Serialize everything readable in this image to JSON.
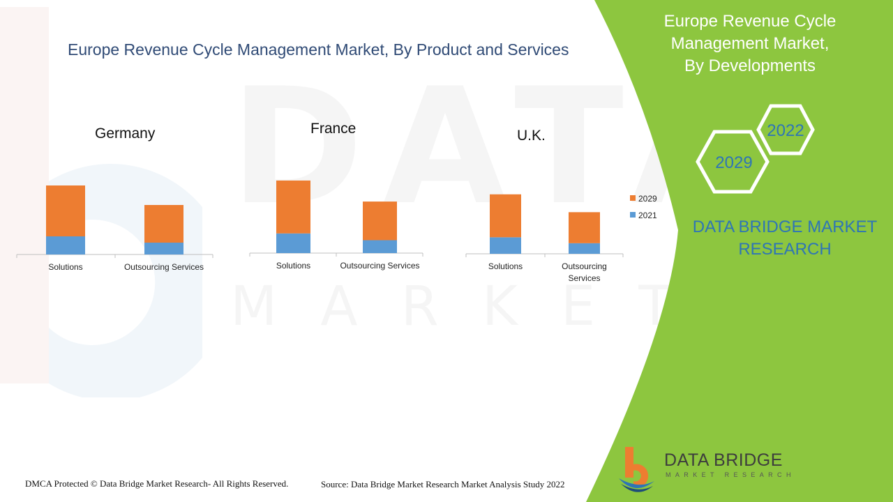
{
  "watermark": {
    "big": "DATA BRIDGE",
    "small": "MARKET RESEARCH"
  },
  "chart_title": "Europe Revenue Cycle Management Market, By Product and Services",
  "colors": {
    "series_2021": "#5b9bd5",
    "series_2029": "#ed7d31",
    "green": "#8dc63f",
    "title_blue": "#2f4a75",
    "brand_blue": "#2e75b6"
  },
  "chart_data": [
    {
      "type": "bar",
      "stacked": true,
      "title": "Germany",
      "categories": [
        "Solutions",
        "Outsourcing Services"
      ],
      "series": [
        {
          "name": "2021",
          "values": [
            26,
            17
          ]
        },
        {
          "name": "2029",
          "values": [
            73,
            54
          ]
        }
      ],
      "ylim": [
        0,
        100
      ]
    },
    {
      "type": "bar",
      "stacked": true,
      "title": "France",
      "categories": [
        "Solutions",
        "Outsourcing Services"
      ],
      "series": [
        {
          "name": "2021",
          "values": [
            29,
            19
          ]
        },
        {
          "name": "2029",
          "values": [
            78,
            57
          ]
        }
      ],
      "ylim": [
        0,
        110
      ]
    },
    {
      "type": "bar",
      "stacked": true,
      "title": "U.K.",
      "categories": [
        "Solutions",
        "Outsourcing Services"
      ],
      "series": [
        {
          "name": "2021",
          "values": [
            25,
            16
          ]
        },
        {
          "name": "2029",
          "values": [
            65,
            47
          ]
        }
      ],
      "ylim": [
        0,
        95
      ],
      "legend": {
        "placement": "right",
        "entries": [
          "2029",
          "2021"
        ]
      }
    }
  ],
  "panel": {
    "title": "Europe Revenue Cycle Management Market, By Developments",
    "hex_2022": "2022",
    "hex_2029": "2029",
    "brand": "DATA BRIDGE MARKET RESEARCH"
  },
  "logo": {
    "name": "DATA BRIDGE",
    "tagline": "MARKET RESEARCH"
  },
  "footer": {
    "left": "DMCA Protected © Data Bridge Market Research- All Rights Reserved.",
    "right": "Source: Data Bridge Market Research Market Analysis Study 2022"
  }
}
